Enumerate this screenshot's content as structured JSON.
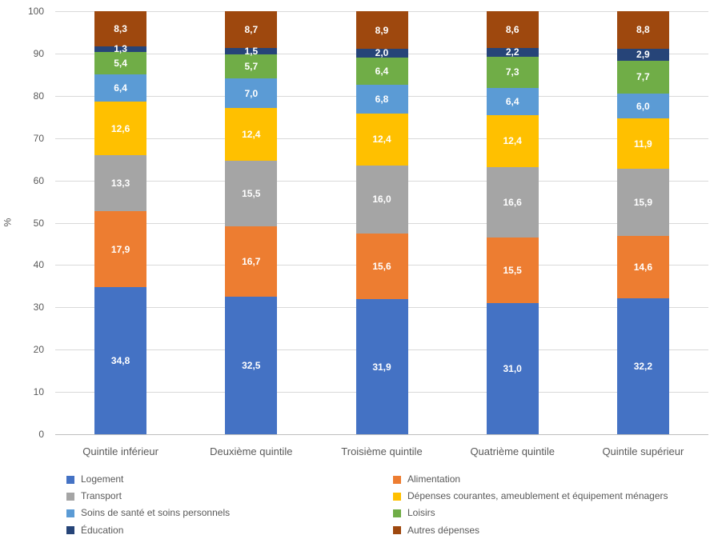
{
  "chart_data": {
    "type": "bar",
    "variant": "stacked-100",
    "title": "",
    "xlabel": "",
    "ylabel": "%",
    "ylim": [
      0,
      100
    ],
    "yticks": [
      0,
      10,
      20,
      30,
      40,
      50,
      60,
      70,
      80,
      90,
      100
    ],
    "grid": true,
    "decimal_separator": ",",
    "legend_position": "bottom",
    "legend_columns": 2,
    "categories": [
      "Quintile inférieur",
      "Deuxième quintile",
      "Troisième quintile",
      "Quatrième quintile",
      "Quintile supérieur"
    ],
    "series": [
      {
        "name": "Logement",
        "color": "#4472C4",
        "values": [
          34.8,
          32.5,
          31.9,
          31.0,
          32.2
        ]
      },
      {
        "name": "Alimentation",
        "color": "#ED7D31",
        "values": [
          17.9,
          16.7,
          15.6,
          15.5,
          14.6
        ]
      },
      {
        "name": "Transport",
        "color": "#A5A5A5",
        "values": [
          13.3,
          15.5,
          16.0,
          16.6,
          15.9
        ]
      },
      {
        "name": "Dépenses courantes, ameublement et équipement ménagers",
        "color": "#FFC000",
        "values": [
          12.6,
          12.4,
          12.4,
          12.4,
          11.9
        ]
      },
      {
        "name": "Soins de santé et soins personnels",
        "color": "#5B9BD5",
        "values": [
          6.4,
          7.0,
          6.8,
          6.4,
          6.0
        ]
      },
      {
        "name": "Loisirs",
        "color": "#70AD47",
        "values": [
          5.4,
          5.7,
          6.4,
          7.3,
          7.7
        ]
      },
      {
        "name": "Éducation",
        "color": "#264478",
        "values": [
          1.3,
          1.5,
          2.0,
          2.2,
          2.9
        ]
      },
      {
        "name": "Autres dépenses",
        "color": "#9E480E",
        "values": [
          8.3,
          8.7,
          8.9,
          8.6,
          8.8
        ]
      }
    ]
  }
}
